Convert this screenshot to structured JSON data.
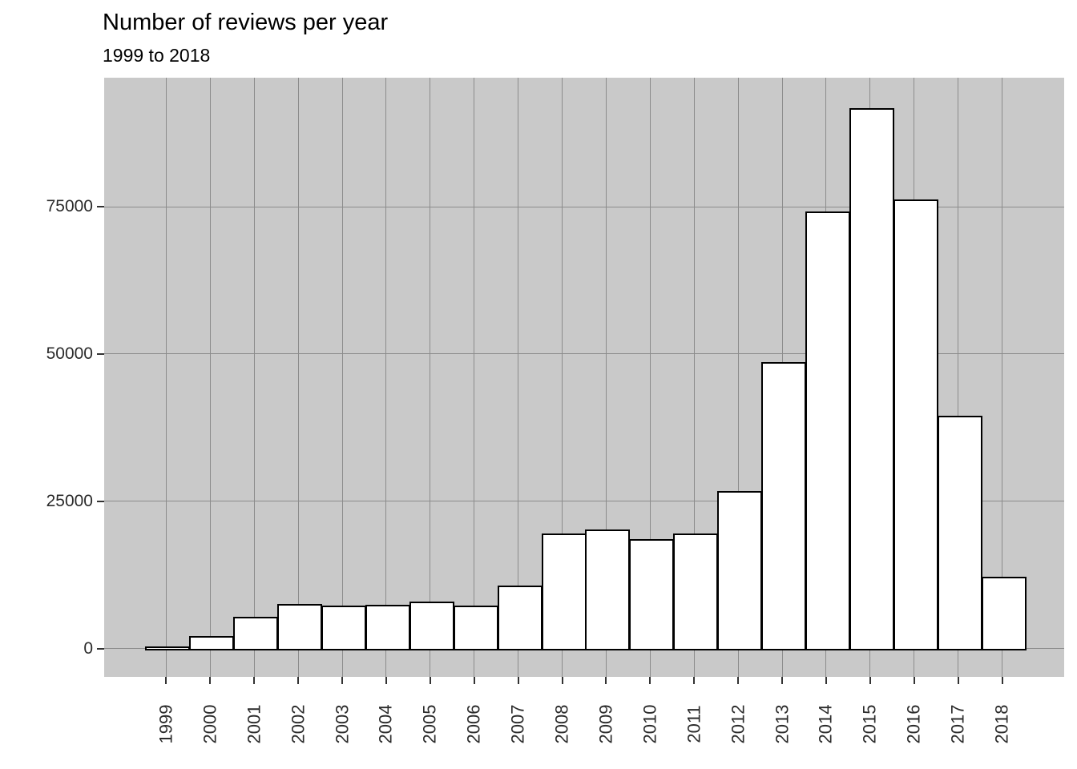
{
  "chart_data": {
    "type": "bar",
    "title": "Number of reviews per year",
    "subtitle": "1999 to 2018",
    "xlabel": "",
    "ylabel": "",
    "categories": [
      "1999",
      "2000",
      "2001",
      "2002",
      "2003",
      "2004",
      "2005",
      "2006",
      "2007",
      "2008",
      "2009",
      "2010",
      "2011",
      "2012",
      "2013",
      "2014",
      "2015",
      "2016",
      "2017",
      "2018"
    ],
    "values": [
      200,
      1900,
      5200,
      7400,
      7100,
      7300,
      7800,
      7100,
      10500,
      19300,
      20000,
      18400,
      19400,
      26600,
      48500,
      74000,
      91600,
      76100,
      39300,
      12000
    ],
    "yticks": [
      0,
      25000,
      50000,
      75000
    ],
    "ytick_labels": [
      "0",
      "25000",
      "50000",
      "75000"
    ],
    "ylim": [
      -4800,
      96900
    ],
    "grid": "major-only",
    "legend": "none",
    "colors": {
      "page_background": "#FFFFFF",
      "panel_background": "#C9C9C9",
      "gridline": "#8C8C8C",
      "bar_fill": "#FFFFFF",
      "bar_border": "#000000",
      "title_text": "#000000",
      "axis_text": "#2B2B2B",
      "tick_mark": "#333333"
    }
  }
}
